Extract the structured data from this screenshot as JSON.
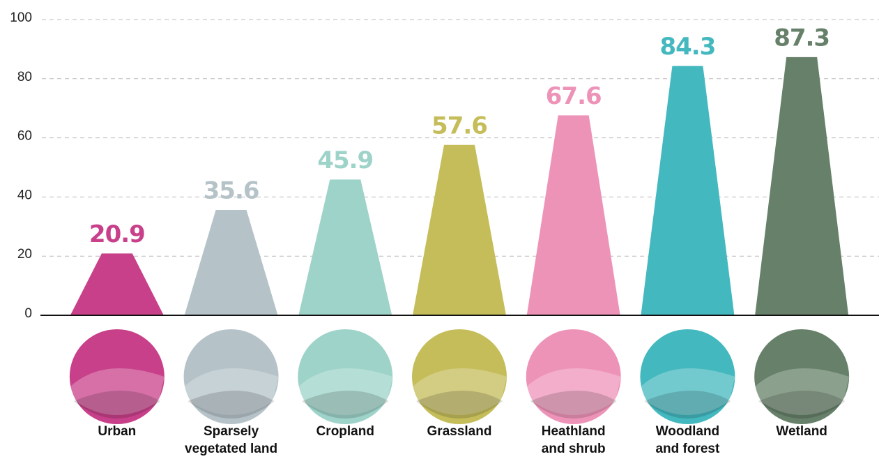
{
  "chart_data": {
    "type": "trapezoid-bar",
    "categories": [
      "Urban",
      "Sparsely\nvegetated land",
      "Cropland",
      "Grassland",
      "Heathland\nand shrub",
      "Woodland\nand forest",
      "Wetland"
    ],
    "values": [
      20.9,
      35.6,
      45.9,
      57.6,
      67.6,
      84.3,
      87.3
    ],
    "colors": [
      "#c8408a",
      "#b5c3c9",
      "#9dd3c9",
      "#c5bd5a",
      "#ee93b8",
      "#43b8bf",
      "#668069"
    ],
    "ylim": [
      0,
      100
    ],
    "yticks": [
      0,
      20,
      40,
      60,
      80,
      100
    ],
    "grid": true
  }
}
